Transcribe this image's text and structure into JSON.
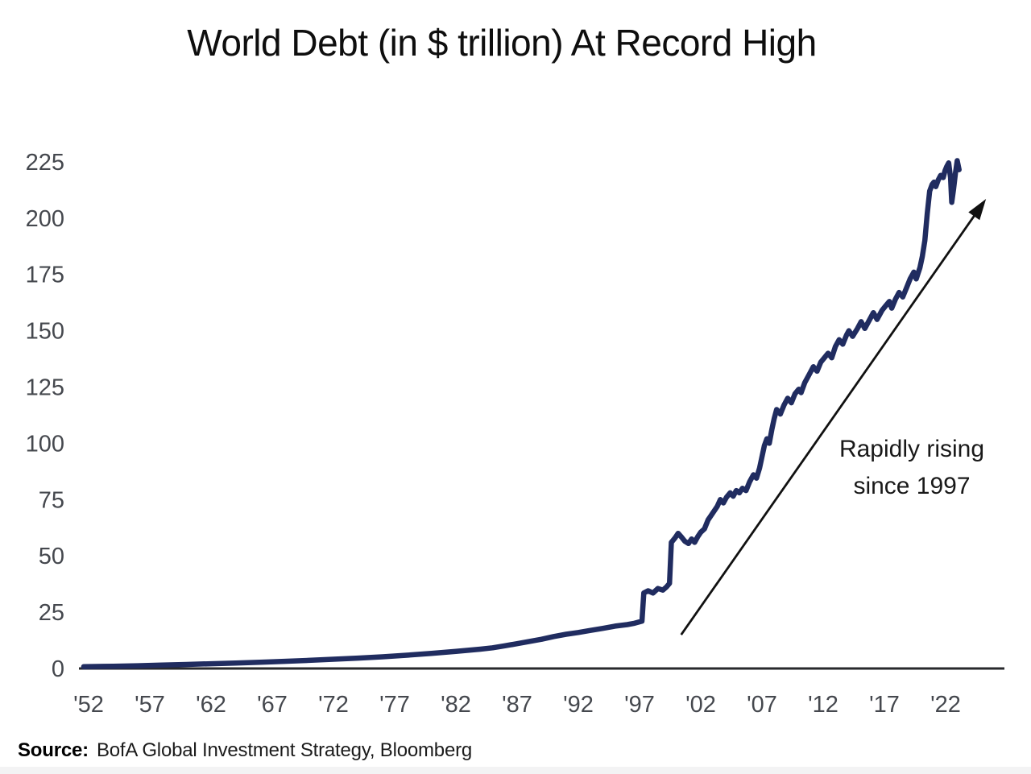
{
  "title": "World Debt (in $ trillion) At Record High",
  "annotation": {
    "line1": "Rapidly rising",
    "line2": "since 1997"
  },
  "source": {
    "label": "Source:",
    "text": "BofA Global Investment Strategy, Bloomberg"
  },
  "chart_data": {
    "type": "line",
    "title": "World Debt (in $ trillion) At Record High",
    "xlabel": "",
    "ylabel": "",
    "xlim": [
      1951,
      2025.5
    ],
    "ylim": [
      0,
      237
    ],
    "grid": false,
    "legend": "none",
    "line_color": "#202c60",
    "axis_color": "#28292c",
    "tick_label_color": "#45484e",
    "arrow_color": "#111111",
    "y_ticks": [
      0,
      25,
      50,
      75,
      100,
      125,
      150,
      175,
      200,
      225
    ],
    "x_tick_years": [
      1952,
      1957,
      1962,
      1967,
      1972,
      1977,
      1982,
      1987,
      1992,
      1997,
      2002,
      2007,
      2012,
      2017,
      2022
    ],
    "x_tick_labels": [
      "'52",
      "'57",
      "'62",
      "'67",
      "'72",
      "'77",
      "'82",
      "'87",
      "'92",
      "'97",
      "'02",
      "'07",
      "'12",
      "'17",
      "'22"
    ],
    "arrow_annotation": {
      "text": [
        "Rapidly rising",
        "since 1997"
      ],
      "from": [
        2000.4,
        15
      ],
      "to": [
        2025.3,
        208.5
      ]
    },
    "series": [
      {
        "name": "World debt ($ trillion)",
        "points": [
          [
            1951.6,
            0.8
          ],
          [
            1954,
            1
          ],
          [
            1956,
            1.2
          ],
          [
            1958,
            1.5
          ],
          [
            1960,
            1.8
          ],
          [
            1962,
            2.1
          ],
          [
            1964,
            2.4
          ],
          [
            1966,
            2.8
          ],
          [
            1968,
            3.2
          ],
          [
            1970,
            3.6
          ],
          [
            1972,
            4.1
          ],
          [
            1974,
            4.6
          ],
          [
            1976,
            5.2
          ],
          [
            1978,
            5.9
          ],
          [
            1980,
            6.7
          ],
          [
            1982,
            7.6
          ],
          [
            1984,
            8.6
          ],
          [
            1985,
            9.2
          ],
          [
            1986,
            10.1
          ],
          [
            1987,
            11
          ],
          [
            1988,
            12
          ],
          [
            1989,
            13
          ],
          [
            1990,
            14.2
          ],
          [
            1991,
            15.2
          ],
          [
            1992,
            16
          ],
          [
            1993,
            16.9
          ],
          [
            1994,
            17.8
          ],
          [
            1995,
            18.8
          ],
          [
            1996,
            19.5
          ],
          [
            1996.6,
            20.1
          ],
          [
            1997.2,
            21
          ],
          [
            1997.35,
            33.5
          ],
          [
            1997.7,
            34.5
          ],
          [
            1998.1,
            33.5
          ],
          [
            1998.5,
            35.5
          ],
          [
            1998.9,
            34.8
          ],
          [
            1999.2,
            36.2
          ],
          [
            1999.45,
            37.8
          ],
          [
            1999.6,
            56
          ],
          [
            1999.9,
            58
          ],
          [
            2000.15,
            60
          ],
          [
            2000.4,
            58.5
          ],
          [
            2000.7,
            56.5
          ],
          [
            2001,
            55.5
          ],
          [
            2001.25,
            57.5
          ],
          [
            2001.5,
            56
          ],
          [
            2001.75,
            58.5
          ],
          [
            2002,
            60.5
          ],
          [
            2002.3,
            62
          ],
          [
            2002.6,
            66
          ],
          [
            2002.85,
            68
          ],
          [
            2003.1,
            70
          ],
          [
            2003.35,
            72
          ],
          [
            2003.6,
            75
          ],
          [
            2003.85,
            73.5
          ],
          [
            2004.1,
            76
          ],
          [
            2004.4,
            78
          ],
          [
            2004.65,
            76.5
          ],
          [
            2004.9,
            79
          ],
          [
            2005.15,
            78
          ],
          [
            2005.4,
            80
          ],
          [
            2005.7,
            79
          ],
          [
            2006,
            83
          ],
          [
            2006.3,
            86
          ],
          [
            2006.55,
            84.5
          ],
          [
            2006.8,
            89
          ],
          [
            2007,
            94
          ],
          [
            2007.2,
            99
          ],
          [
            2007.4,
            102
          ],
          [
            2007.6,
            100
          ],
          [
            2007.8,
            106
          ],
          [
            2008,
            111
          ],
          [
            2008.2,
            115
          ],
          [
            2008.5,
            113
          ],
          [
            2008.8,
            117
          ],
          [
            2009.1,
            120
          ],
          [
            2009.4,
            118
          ],
          [
            2009.7,
            122
          ],
          [
            2010,
            124
          ],
          [
            2010.2,
            122.5
          ],
          [
            2010.5,
            127
          ],
          [
            2010.8,
            130
          ],
          [
            2011,
            132
          ],
          [
            2011.2,
            134
          ],
          [
            2011.5,
            132
          ],
          [
            2011.8,
            136
          ],
          [
            2012.1,
            138
          ],
          [
            2012.4,
            140
          ],
          [
            2012.7,
            138
          ],
          [
            2013,
            143
          ],
          [
            2013.3,
            146
          ],
          [
            2013.6,
            144
          ],
          [
            2013.9,
            148
          ],
          [
            2014.1,
            150
          ],
          [
            2014.4,
            147.5
          ],
          [
            2014.8,
            151
          ],
          [
            2015.1,
            154
          ],
          [
            2015.4,
            151
          ],
          [
            2015.8,
            155
          ],
          [
            2016.1,
            158
          ],
          [
            2016.4,
            155
          ],
          [
            2016.8,
            159
          ],
          [
            2017.1,
            161
          ],
          [
            2017.4,
            163
          ],
          [
            2017.6,
            160
          ],
          [
            2017.9,
            164
          ],
          [
            2018.2,
            167
          ],
          [
            2018.5,
            165
          ],
          [
            2018.8,
            169
          ],
          [
            2019.1,
            173
          ],
          [
            2019.4,
            176
          ],
          [
            2019.6,
            173
          ],
          [
            2019.9,
            178
          ],
          [
            2020.1,
            183
          ],
          [
            2020.3,
            190
          ],
          [
            2020.5,
            202
          ],
          [
            2020.7,
            212
          ],
          [
            2020.9,
            215
          ],
          [
            2021.05,
            216
          ],
          [
            2021.2,
            214
          ],
          [
            2021.4,
            217
          ],
          [
            2021.6,
            219
          ],
          [
            2021.8,
            218
          ],
          [
            2021.95,
            221
          ],
          [
            2022.1,
            223
          ],
          [
            2022.25,
            224.5
          ],
          [
            2022.4,
            218
          ],
          [
            2022.5,
            207
          ],
          [
            2022.65,
            213
          ],
          [
            2022.8,
            220
          ],
          [
            2022.95,
            225.5
          ],
          [
            2023.1,
            221.5
          ]
        ]
      }
    ]
  }
}
